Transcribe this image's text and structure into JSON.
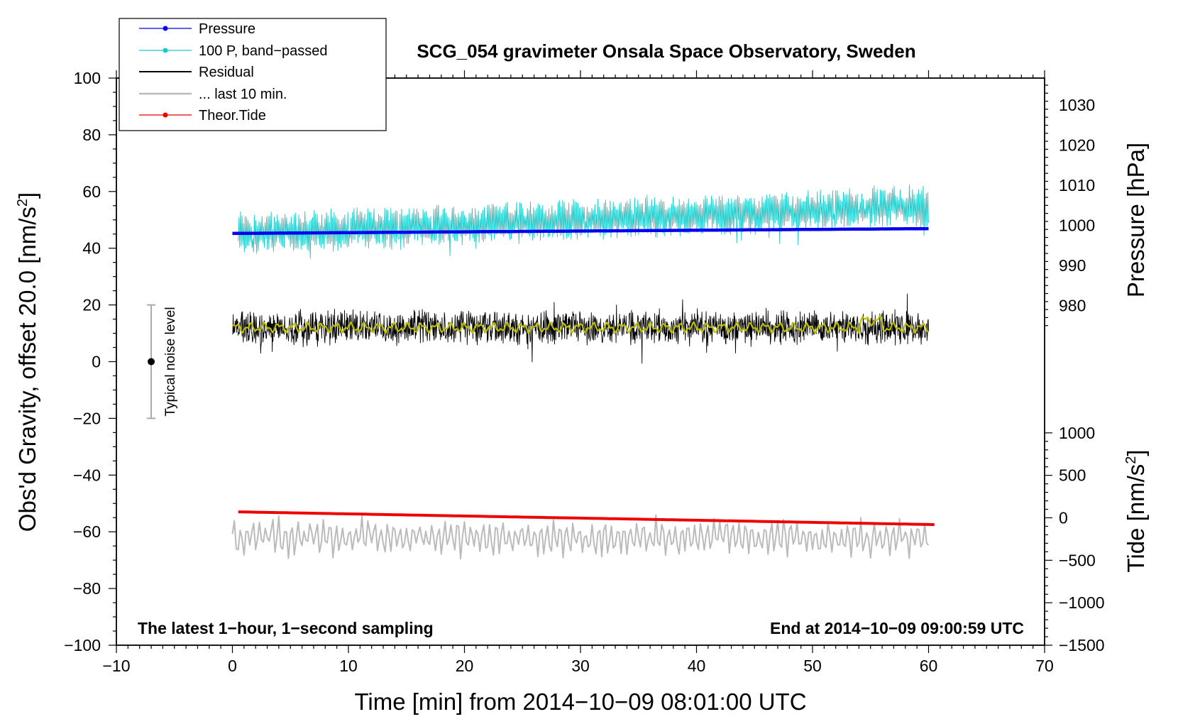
{
  "chart_data": {
    "type": "line",
    "title": "SCG_054 gravimeter Onsala Space Observatory, Sweden",
    "xlabel": "Time [min] from 2014−10−09 08:01:00 UTC",
    "ylabel_left": "Obs'd Gravity, offset 20.0 [nm/s",
    "ylabel_left_sup": "2",
    "ylabel_left_close": "]",
    "ylabel_right_pressure": "Pressure [hPa]",
    "ylabel_right_tide": "Tide [nm/s",
    "ylabel_right_tide_sup": "2",
    "ylabel_right_tide_close": "]",
    "xlim": [
      -10,
      70
    ],
    "ylim_left": [
      -100,
      100
    ],
    "pressure_ylim": [
      973,
      1035
    ],
    "tide_ylim": [
      -1500,
      1500
    ],
    "x_ticks": [
      -10,
      0,
      10,
      20,
      30,
      40,
      50,
      60,
      70
    ],
    "x_tick_labels": [
      "−10",
      "0",
      "10",
      "20",
      "30",
      "40",
      "50",
      "60",
      "70"
    ],
    "y_left_ticks": [
      -100,
      -80,
      -60,
      -40,
      -20,
      0,
      20,
      40,
      60,
      80,
      100
    ],
    "y_left_tick_labels": [
      "−100",
      "−80",
      "−60",
      "−40",
      "−20",
      "0",
      "20",
      "40",
      "60",
      "80",
      "100"
    ],
    "pressure_ticks": [
      980,
      990,
      1000,
      1010,
      1020,
      1030
    ],
    "pressure_tick_labels": [
      "980",
      "990",
      "1000",
      "1010",
      "1020",
      "1030"
    ],
    "tide_ticks": [
      -1500,
      -1000,
      -500,
      0,
      500,
      1000
    ],
    "tide_tick_labels": [
      "−1500",
      "−1000",
      "−500",
      "0",
      "500",
      "1000"
    ],
    "legend": {
      "position": "top-left",
      "entries": [
        {
          "label": "Pressure",
          "color": "#0000ee",
          "marker": true
        },
        {
          "label": "100 P, band−passed",
          "color": "#20c8c8",
          "marker": true
        },
        {
          "label": "Residual",
          "color": "#000000",
          "marker": false
        },
        {
          "label": "... last 10 min.",
          "color": "#bbbbbb",
          "marker": false
        },
        {
          "label": "Theor.Tide",
          "color": "#ee0000",
          "marker": true
        }
      ]
    },
    "noise_bar": {
      "label": "Typical noise level",
      "x": -7,
      "y_center": 0,
      "y_half_range": 20
    },
    "annotation_left": "The latest 1−hour, 1−second sampling",
    "annotation_right": "End at 2014−10−09 09:00:59 UTC",
    "series": [
      {
        "name": "Pressure",
        "axis": "pressure",
        "color": "#0000ee",
        "x_start": 0,
        "x_end": 60,
        "y_start": 998.0,
        "y_end": 999.2
      },
      {
        "name": "100 P, band-passed",
        "axis": "gravity",
        "color": "#20c8c8",
        "x_start": 0.5,
        "x_end": 60,
        "mean_start": 45,
        "mean_end": 55,
        "amplitude": 7,
        "approx_range": [
          29,
          64
        ]
      },
      {
        "name": "Residual",
        "axis": "gravity",
        "color": "#000000",
        "x_start": 0,
        "x_end": 60,
        "mean": 12,
        "amplitude": 7,
        "approx_range": [
          -2,
          26
        ]
      },
      {
        "name": "Residual (smoothed)",
        "axis": "gravity",
        "color": "#bbbb00",
        "x_start": 0,
        "x_end": 60,
        "mean": 12,
        "amplitude": 2
      },
      {
        "name": "... last 10 min.",
        "axis": "gravity",
        "color": "#bbbbbb",
        "x_start": 0,
        "x_end": 60,
        "mean": -62,
        "amplitude": 7,
        "approx_range": [
          -72,
          -52
        ]
      },
      {
        "name": "Theor.Tide",
        "axis": "tide",
        "color": "#ee0000",
        "x_start": 0.5,
        "x_end": 60.5,
        "y_start": 70,
        "y_end": -80
      }
    ]
  }
}
